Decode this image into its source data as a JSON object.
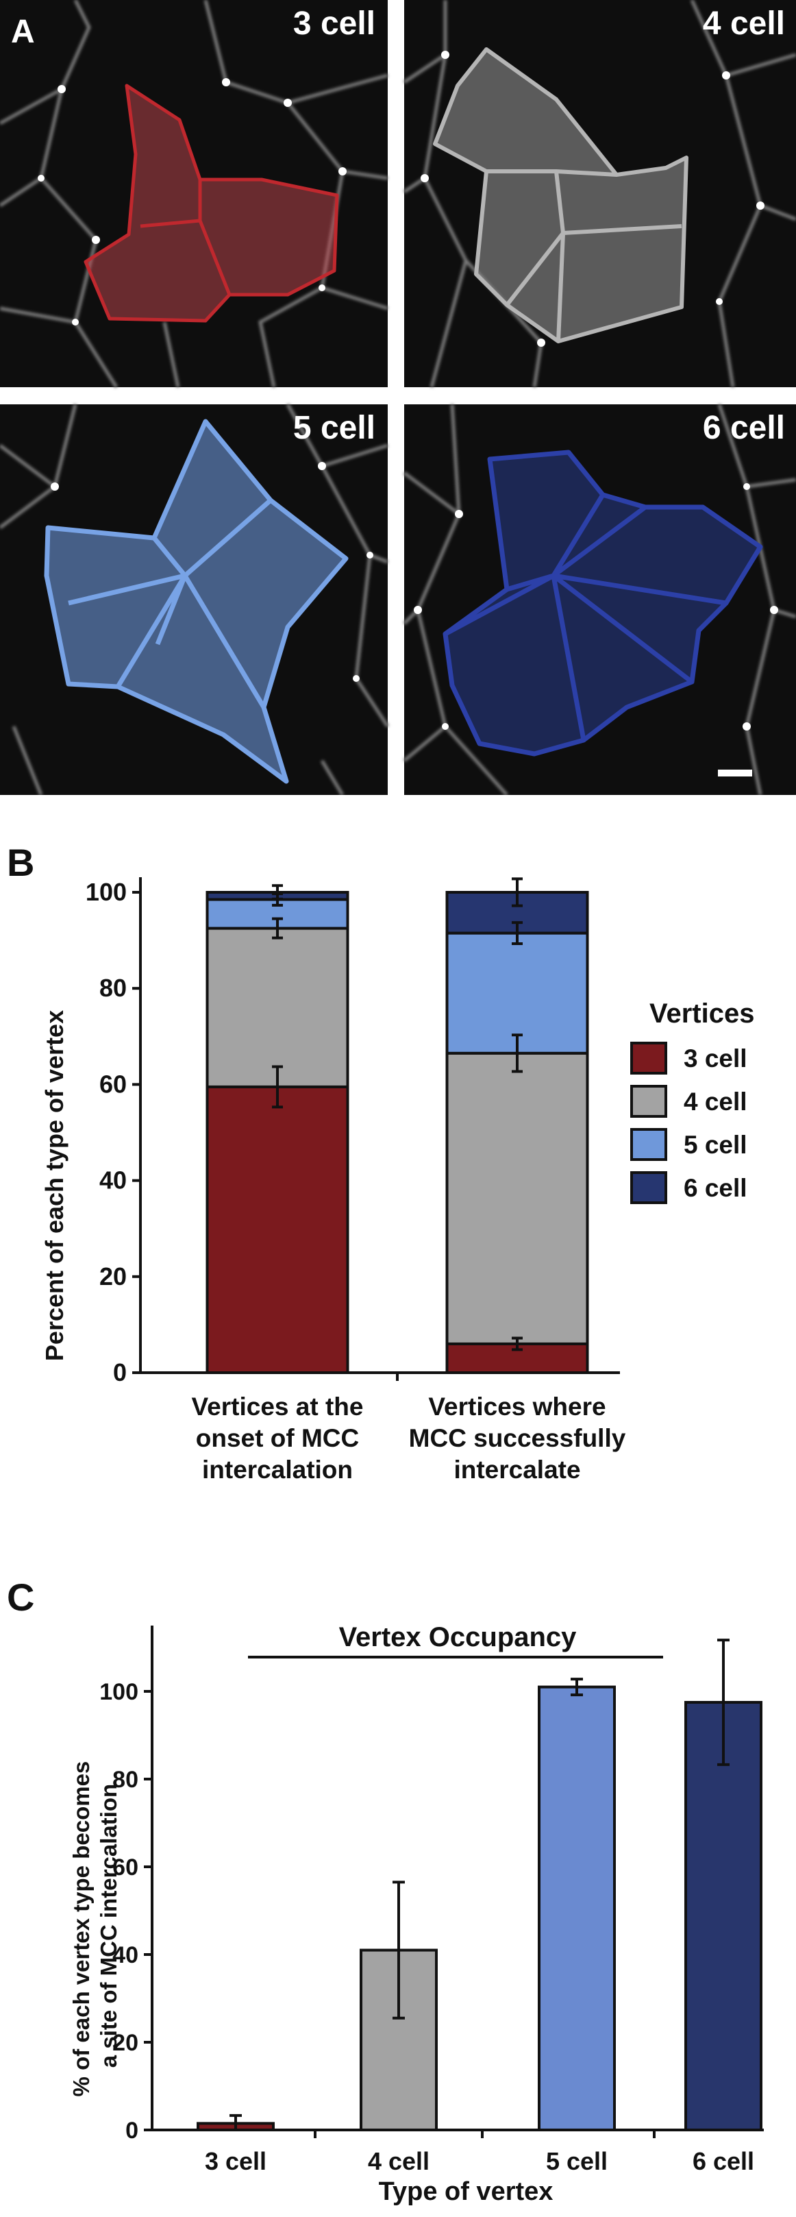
{
  "panel_a": {
    "label": "A",
    "images": [
      {
        "title": "3 cell",
        "tint": "#c4474f",
        "edge": "#c0282e"
      },
      {
        "title": "4 cell",
        "tint": "#9a9a9a",
        "edge": "#b5b5b5"
      },
      {
        "title": "5 cell",
        "tint": "#6d96d8",
        "edge": "#78a3e6"
      },
      {
        "title": "6 cell",
        "tint": "#283c8c",
        "edge": "#2c40a8"
      }
    ]
  },
  "chart_data": [
    {
      "panel_label": "B",
      "type": "bar",
      "stacked": true,
      "categories": [
        [
          "Vertices at the",
          "onset of MCC",
          "intercalation"
        ],
        [
          "Vertices where",
          "MCC successfully",
          "intercalate"
        ]
      ],
      "series": [
        {
          "name": "3 cell",
          "color": "#7b1a1e",
          "values": [
            59.5,
            6
          ],
          "errors": [
            4.2,
            1.2
          ]
        },
        {
          "name": "4 cell",
          "color": "#a3a3a3",
          "values": [
            33,
            60.5
          ],
          "errors": [
            2.0,
            3.8
          ]
        },
        {
          "name": "5 cell",
          "color": "#6f98da",
          "values": [
            6,
            25
          ],
          "errors": [
            1.2,
            2.2
          ]
        },
        {
          "name": "6 cell",
          "color": "#263670",
          "values": [
            1.5,
            8.5
          ],
          "errors": [
            1.4,
            2.8
          ]
        }
      ],
      "ylabel": "Percent of each type of vertex",
      "ylim": [
        0,
        100
      ],
      "yticks": [
        0,
        20,
        40,
        60,
        80,
        100
      ],
      "legend_title": "Vertices",
      "legend_position": "right"
    },
    {
      "panel_label": "C",
      "type": "bar",
      "categories": [
        "3 cell",
        "4 cell",
        "5 cell",
        "6 cell"
      ],
      "values": [
        1.5,
        41,
        101,
        97.5
      ],
      "errors": [
        1.8,
        15.5,
        1.8,
        14.2
      ],
      "colors": [
        "#7b1a1e",
        "#a3a3a3",
        "#6a8ad0",
        "#28366c"
      ],
      "ylabel": [
        "% of each vertex type becomes",
        "a site of MCC intercalation"
      ],
      "xlabel": "Type of vertex",
      "annotation": "Vertex Occupancy",
      "ylim": [
        0,
        115
      ],
      "yticks": [
        0,
        20,
        40,
        60,
        80,
        100
      ]
    }
  ]
}
